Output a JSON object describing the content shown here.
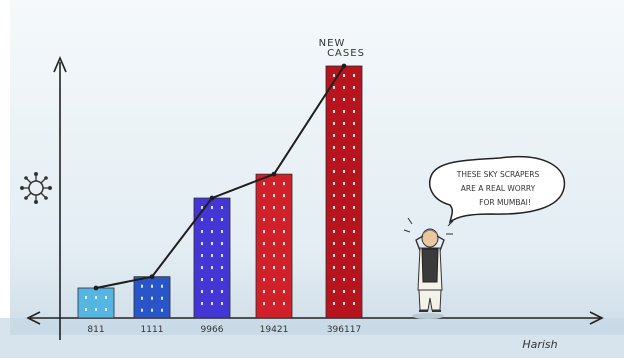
{
  "cartoon": {
    "line_label": [
      "NEW",
      "CASES"
    ],
    "speech_bubble": [
      "THESE SKY SCRAPERS",
      "ARE A REAL WORRY",
      "FOR MUMBAI!"
    ],
    "signature": "Harish",
    "virus_symbol": "virus-icon"
  },
  "chart_data": {
    "type": "bar",
    "categories": [
      "811",
      "1111",
      "9966",
      "19421",
      "396117"
    ],
    "series": [
      {
        "values": [
          811,
          1111,
          9966,
          19421,
          396117
        ],
        "colors": [
          "#56b6e3",
          "#2a55c8",
          "#4436d4",
          "#d0202a",
          "#b8141e"
        ]
      }
    ],
    "line_overlay": "NEW CASES",
    "xlabel": "",
    "ylabel": ""
  }
}
